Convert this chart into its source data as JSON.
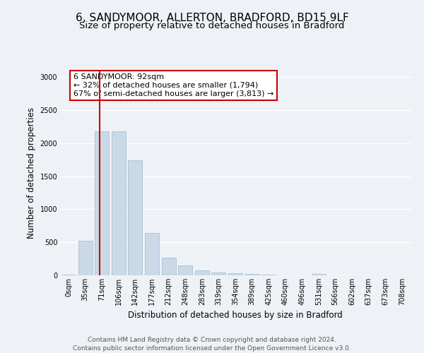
{
  "title_line1": "6, SANDYMOOR, ALLERTON, BRADFORD, BD15 9LF",
  "title_line2": "Size of property relative to detached houses in Bradford",
  "xlabel": "Distribution of detached houses by size in Bradford",
  "ylabel": "Number of detached properties",
  "categories": [
    "0sqm",
    "35sqm",
    "71sqm",
    "106sqm",
    "142sqm",
    "177sqm",
    "212sqm",
    "248sqm",
    "283sqm",
    "319sqm",
    "354sqm",
    "389sqm",
    "425sqm",
    "460sqm",
    "496sqm",
    "531sqm",
    "566sqm",
    "602sqm",
    "637sqm",
    "673sqm",
    "708sqm"
  ],
  "values": [
    15,
    520,
    2185,
    2185,
    1740,
    640,
    265,
    145,
    80,
    45,
    35,
    18,
    12,
    5,
    3,
    20,
    2,
    1,
    1,
    1,
    1
  ],
  "bar_color": "#c9d9e8",
  "bar_edge_color": "#a0b8cc",
  "vline_x": 1.88,
  "vline_color": "#cc0000",
  "annotation_box_text": "6 SANDYMOOR: 92sqm\n← 32% of detached houses are smaller (1,794)\n67% of semi-detached houses are larger (3,813) →",
  "annotation_box_facecolor": "white",
  "annotation_box_edgecolor": "#cc0000",
  "ylim": [
    0,
    3100
  ],
  "yticks": [
    0,
    500,
    1000,
    1500,
    2000,
    2500,
    3000
  ],
  "bg_color": "#eef2f7",
  "plot_bg_color": "#eef2f7",
  "grid_color": "white",
  "footer_line1": "Contains HM Land Registry data © Crown copyright and database right 2024.",
  "footer_line2": "Contains public sector information licensed under the Open Government Licence v3.0.",
  "title_fontsize": 11,
  "subtitle_fontsize": 9.5,
  "axis_label_fontsize": 8.5,
  "tick_fontsize": 7,
  "footer_fontsize": 6.5,
  "annot_fontsize": 8
}
